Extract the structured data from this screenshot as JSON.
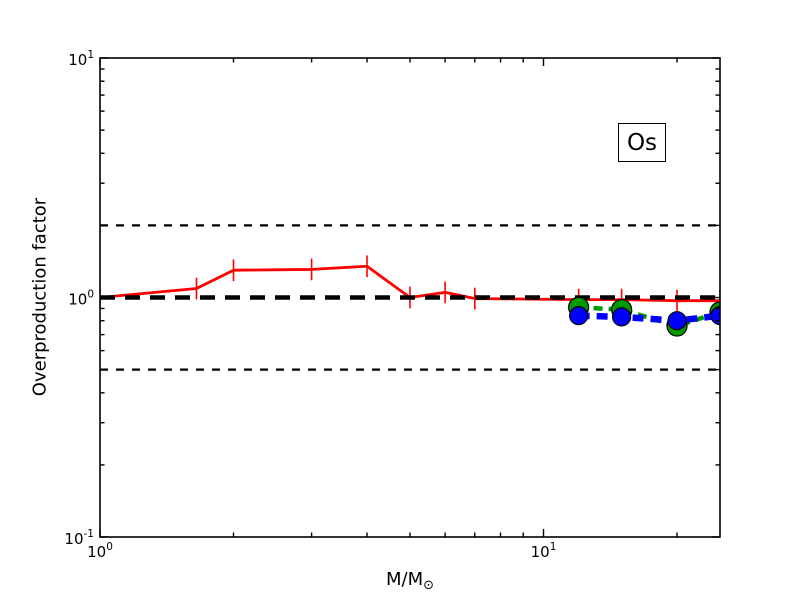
{
  "chart_data": {
    "type": "line",
    "title": "",
    "xlabel_main": "M/M",
    "xlabel_subscript": "⊙",
    "ylabel": "Overproduction factor",
    "annotation": "Os",
    "xscale": "log",
    "yscale": "log",
    "xlim": [
      1,
      25
    ],
    "ylim": [
      0.1,
      10
    ],
    "background_color": "#ffffff",
    "axis_color": "#000000",
    "x_axis": {
      "major_ticks": [
        {
          "value": 1,
          "base": "10",
          "exponent": "0"
        },
        {
          "value": 10,
          "base": "10",
          "exponent": "1"
        }
      ],
      "minor_ticks": [
        2,
        3,
        4,
        5,
        6,
        7,
        8,
        9,
        20
      ]
    },
    "y_axis": {
      "major_ticks": [
        {
          "value": 0.1,
          "base": "10",
          "exponent": "-1"
        },
        {
          "value": 1,
          "base": "10",
          "exponent": "0"
        },
        {
          "value": 10,
          "base": "10",
          "exponent": "1"
        }
      ],
      "minor_ticks": [
        0.2,
        0.3,
        0.4,
        0.5,
        0.6,
        0.7,
        0.8,
        0.9,
        2,
        3,
        4,
        5,
        6,
        7,
        8,
        9
      ]
    },
    "reference_lines": [
      {
        "y": 2.0,
        "color": "#000000",
        "style": "dashed",
        "weight": "thin"
      },
      {
        "y": 1.0,
        "color": "#000000",
        "style": "dashed",
        "weight": "thick"
      },
      {
        "y": 0.5,
        "color": "#000000",
        "style": "dashed",
        "weight": "thin"
      }
    ],
    "series": [
      {
        "name": "solid-red-models-with-error-bars",
        "color": "#ff0000",
        "line_style": "solid",
        "line_width": 2.8,
        "marker": "none",
        "has_error_bars": true,
        "error_factor": 1.11,
        "x": [
          1.0,
          1.65,
          2.0,
          3.0,
          4.0,
          5.0,
          6.0,
          7.0,
          12.0,
          15.0,
          20.0,
          25.0
        ],
        "y": [
          1.0,
          1.09,
          1.3,
          1.31,
          1.35,
          1.0,
          1.05,
          0.99,
          0.98,
          0.98,
          0.97,
          0.97
        ]
      },
      {
        "name": "dashed-green-massive-star-models",
        "color": "#009900",
        "line_style": "dashed",
        "dash": [
          9,
          6
        ],
        "line_width": 4.5,
        "marker": "circle",
        "marker_radius": 10,
        "marker_edge_color": "#000000",
        "has_error_bars": false,
        "x": [
          12,
          15,
          20,
          25
        ],
        "y": [
          0.91,
          0.89,
          0.76,
          0.87
        ]
      },
      {
        "name": "dashed-blue-massive-star-models",
        "color": "#0000ff",
        "line_style": "dashed",
        "dash": [
          11,
          7
        ],
        "line_width": 6.5,
        "marker": "circle",
        "marker_radius": 9,
        "marker_edge_color": "#000000",
        "has_error_bars": false,
        "x": [
          12,
          15,
          20,
          25
        ],
        "y": [
          0.84,
          0.83,
          0.8,
          0.84
        ]
      }
    ]
  }
}
